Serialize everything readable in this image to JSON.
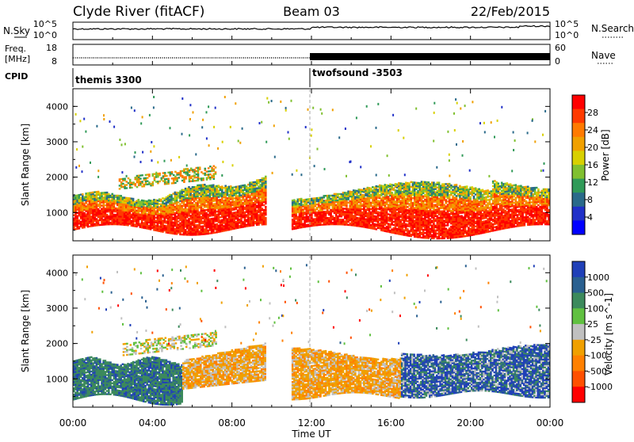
{
  "header": {
    "station": "Clyde River (fitACF)",
    "beam": "Beam 03",
    "date": "22/Feb/2015"
  },
  "top_panels": {
    "nsky": {
      "label": "N.Sky",
      "ticks": [
        "10^5",
        "10^0"
      ]
    },
    "nsearch": {
      "label": "N.Search",
      "ticks": [
        "10^5",
        "10^0"
      ]
    },
    "freq": {
      "label_line1": "Freq.",
      "label_line2": "[MHz]",
      "ticks": [
        "18",
        "8"
      ]
    },
    "nave": {
      "label": "Nave",
      "ticks": [
        "60",
        "0"
      ]
    },
    "cpid": {
      "label": "CPID"
    }
  },
  "cpid_segments": [
    {
      "name": "themis 3300",
      "start_hour": 0
    },
    {
      "name": "twofsound -3503",
      "start_hour": 12
    }
  ],
  "chart_data": [
    {
      "type": "heatmap",
      "panel": "power",
      "ylabel": "Slant Range [km]",
      "ylim": [
        200,
        4500
      ],
      "yticks": [
        1000,
        2000,
        3000,
        4000
      ],
      "xlim": [
        0,
        24
      ],
      "colorbar": {
        "label": "Power [dB]",
        "ticks": [
          "28",
          "24",
          "20",
          "16",
          "12",
          "8",
          "4"
        ],
        "colors": [
          "#ff0000",
          "#ff3a00",
          "#ff7a00",
          "#f0a000",
          "#d8d000",
          "#80c030",
          "#309a58",
          "#2a6a8a",
          "#2030c8",
          "#0000ff"
        ]
      }
    },
    {
      "type": "heatmap",
      "panel": "velocity",
      "ylabel": "Slant Range [km]",
      "ylim": [
        200,
        4500
      ],
      "yticks": [
        1000,
        2000,
        3000,
        4000
      ],
      "xlim": [
        0,
        24
      ],
      "xlabel": "Time UT",
      "xticks": [
        "00:00",
        "04:00",
        "08:00",
        "12:00",
        "16:00",
        "20:00",
        "00:00"
      ],
      "colorbar": {
        "label": "Velocity [m s^-1]",
        "ticks": [
          "1000",
          "500",
          "100",
          "25",
          "-25",
          "-100",
          "-500",
          "-1000"
        ],
        "colors": [
          "#2040b8",
          "#2a6090",
          "#3c8a5c",
          "#60c040",
          "#c0c0c0",
          "#f0a000",
          "#ff8000",
          "#ff5000",
          "#ff0000"
        ]
      }
    }
  ]
}
